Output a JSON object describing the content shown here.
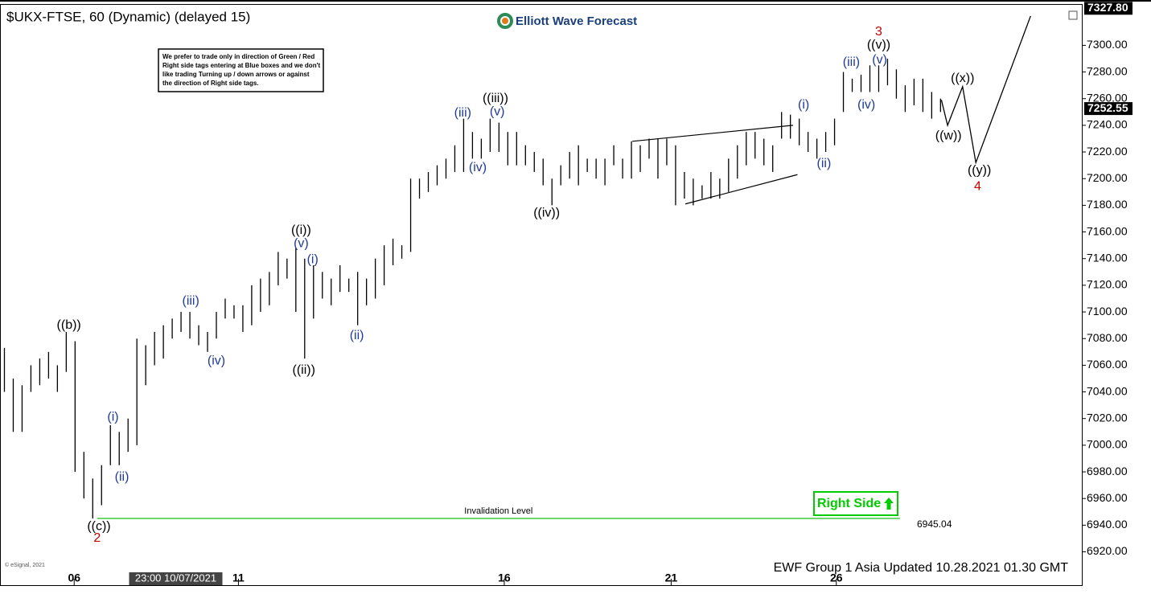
{
  "chart_data": {
    "type": "hlbar",
    "title": "$UKX-FTSE, 60 (Dynamic) (delayed 15)",
    "logo": "Elliott Wave Forecast",
    "note_lines": [
      "We prefer to trade only in direction of Green / Red",
      "Right side tags entering at Blue boxes and we don't",
      "like trading Turning up / down arrows or against",
      "the direction of Right side tags."
    ],
    "right_side_tag": "Right Side",
    "footer": "EWF Group 1 Asia  Updated 10.28.2021 01.30 GMT",
    "copyright": "© eSignal, 2021",
    "color": "#000000",
    "xlim": [
      -0.5,
      122
    ],
    "ylim": [
      6895,
      7331
    ],
    "xticks": [
      {
        "value": 7.9,
        "label": "06"
      },
      {
        "value": 19.4,
        "label": "23:00 10/07/2021"
      },
      {
        "value": 26.5,
        "label": "11"
      },
      {
        "value": 56.6,
        "label": "16"
      },
      {
        "value": 75.5,
        "label": "21"
      },
      {
        "value": 94.2,
        "label": "26"
      }
    ],
    "yticks": [
      {
        "value": 6920,
        "label": "6920.00"
      },
      {
        "value": 6940,
        "label": "6940.00"
      },
      {
        "value": 6960,
        "label": "6960.00"
      },
      {
        "value": 6980,
        "label": "6980.00"
      },
      {
        "value": 7000,
        "label": "7000.00"
      },
      {
        "value": 7020,
        "label": "7020.00"
      },
      {
        "value": 7040,
        "label": "7040.00"
      },
      {
        "value": 7060,
        "label": "7060.00"
      },
      {
        "value": 7080,
        "label": "7080.00"
      },
      {
        "value": 7100,
        "label": "7100.00"
      },
      {
        "value": 7120,
        "label": "7120.00"
      },
      {
        "value": 7140,
        "label": "7140.00"
      },
      {
        "value": 7160,
        "label": "7160.00"
      },
      {
        "value": 7180,
        "label": "7180.00"
      },
      {
        "value": 7200,
        "label": "7200.00"
      },
      {
        "value": 7220,
        "label": "7220.00"
      },
      {
        "value": 7240,
        "label": "7240.00"
      },
      {
        "value": 7260,
        "label": "7260.00"
      },
      {
        "value": 7280,
        "label": "7280.00"
      },
      {
        "value": 7300,
        "label": "7300.00"
      }
    ],
    "price_tags": [
      {
        "value": 7327.8,
        "label": "7327.80"
      },
      {
        "value": 7252.55,
        "label": "7252.55"
      }
    ],
    "bars": {
      "low": [
        7040,
        7010,
        7010,
        7040,
        7045,
        7050,
        7040,
        7055,
        6980,
        6960,
        6945,
        6955,
        6985,
        6985,
        6995,
        7000,
        7045,
        7060,
        7065,
        7080,
        7085,
        7080,
        7075,
        7070,
        7080,
        7095,
        7095,
        7085,
        7090,
        7100,
        7105,
        7120,
        7125,
        7100,
        7065,
        7095,
        7110,
        7105,
        7115,
        7115,
        7090,
        7105,
        7110,
        7120,
        7135,
        7140,
        7145,
        7185,
        7190,
        7195,
        7200,
        7205,
        7205,
        7215,
        7215,
        7220,
        7220,
        7210,
        7210,
        7210,
        7205,
        7195,
        7180,
        7195,
        7200,
        7195,
        7205,
        7200,
        7195,
        7210,
        7200,
        7200,
        7205,
        7215,
        7200,
        7210,
        7180,
        7185,
        7180,
        7185,
        7185,
        7185,
        7190,
        7200,
        7210,
        7215,
        7210,
        7205,
        7230,
        7230,
        7225,
        7220,
        7215,
        7220,
        7225,
        7250,
        7265,
        7265,
        7265,
        7265,
        7270,
        7260,
        7250,
        7255,
        7250,
        7245,
        7250
      ],
      "high": [
        7073,
        7050,
        7045,
        7060,
        7065,
        7070,
        7060,
        7085,
        7078,
        6995,
        6975,
        6985,
        7015,
        7010,
        7020,
        7080,
        7075,
        7085,
        7090,
        7095,
        7100,
        7100,
        7090,
        7085,
        7100,
        7110,
        7105,
        7105,
        7120,
        7125,
        7130,
        7145,
        7140,
        7148,
        7140,
        7135,
        7130,
        7125,
        7135,
        7125,
        7130,
        7125,
        7140,
        7150,
        7155,
        7150,
        7200,
        7200,
        7205,
        7210,
        7215,
        7225,
        7245,
        7235,
        7230,
        7245,
        7242,
        7235,
        7235,
        7225,
        7220,
        7215,
        7200,
        7210,
        7220,
        7225,
        7215,
        7215,
        7215,
        7225,
        7215,
        7228,
        7225,
        7230,
        7230,
        7230,
        7225,
        7205,
        7200,
        7195,
        7205,
        7200,
        7215,
        7225,
        7235,
        7235,
        7230,
        7225,
        7250,
        7248,
        7245,
        7235,
        7230,
        7235,
        7245,
        7280,
        7275,
        7278,
        7285,
        7285,
        7290,
        7282,
        7270,
        7275,
        7275,
        7265,
        7260
      ]
    },
    "wave_labels": [
      {
        "text": "((b))",
        "x": 7.3,
        "y": 7090,
        "color": "#000000"
      },
      {
        "text": "((c))",
        "x": 10.7,
        "y": 6939,
        "color": "#000000"
      },
      {
        "text": "2",
        "x": 10.5,
        "y": 6930,
        "color": "#c00000"
      },
      {
        "text": "(i)",
        "x": 12.3,
        "y": 7021,
        "color": "#1f3a9a"
      },
      {
        "text": "(ii)",
        "x": 13.3,
        "y": 6976,
        "color": "#1f3a9a"
      },
      {
        "text": "(iii)",
        "x": 21.1,
        "y": 7108,
        "color": "#1f3a9a"
      },
      {
        "text": "(iv)",
        "x": 24,
        "y": 7063,
        "color": "#1f3a9a"
      },
      {
        "text": "((i))",
        "x": 33.6,
        "y": 7161,
        "color": "#000000"
      },
      {
        "text": "(v)",
        "x": 33.6,
        "y": 7151,
        "color": "#1f3a9a"
      },
      {
        "text": "(i)",
        "x": 34.9,
        "y": 7139,
        "color": "#1f3a9a"
      },
      {
        "text": "((ii))",
        "x": 33.9,
        "y": 7056,
        "color": "#000000"
      },
      {
        "text": "(ii)",
        "x": 39.9,
        "y": 7082,
        "color": "#1f3a9a"
      },
      {
        "text": "(iii)",
        "x": 51.9,
        "y": 7249,
        "color": "#1f3a9a"
      },
      {
        "text": "(iv)",
        "x": 53.6,
        "y": 7208,
        "color": "#1f3a9a"
      },
      {
        "text": "(v)",
        "x": 55.8,
        "y": 7250,
        "color": "#1f3a9a"
      },
      {
        "text": "((iii))",
        "x": 55.6,
        "y": 7260,
        "color": "#000000"
      },
      {
        "text": "((iv))",
        "x": 61.4,
        "y": 7174,
        "color": "#000000"
      },
      {
        "text": "(i)",
        "x": 90.5,
        "y": 7255,
        "color": "#1f3a9a"
      },
      {
        "text": "(ii)",
        "x": 92.8,
        "y": 7211,
        "color": "#1f3a9a"
      },
      {
        "text": "(iii)",
        "x": 95.9,
        "y": 7287,
        "color": "#1f3a9a"
      },
      {
        "text": "(iv)",
        "x": 97.6,
        "y": 7255,
        "color": "#1f3a9a"
      },
      {
        "text": "(v)",
        "x": 99.1,
        "y": 7289,
        "color": "#1f3a9a"
      },
      {
        "text": "((v))",
        "x": 99,
        "y": 7300,
        "color": "#000000"
      },
      {
        "text": "3",
        "x": 99,
        "y": 7310,
        "color": "#c00000"
      },
      {
        "text": "((w))",
        "x": 106.9,
        "y": 7232,
        "color": "#000000"
      },
      {
        "text": "((x))",
        "x": 108.5,
        "y": 7275,
        "color": "#000000"
      },
      {
        "text": "((y))",
        "x": 110.4,
        "y": 7206,
        "color": "#000000"
      },
      {
        "text": "4",
        "x": 110.2,
        "y": 7194,
        "color": "#c00000"
      }
    ],
    "projection": {
      "x": [
        106.1,
        106.8,
        108.5,
        110,
        116.2
      ],
      "y": [
        7259,
        7240,
        7269,
        7212,
        7322
      ]
    },
    "wedge": [
      {
        "x": [
          71.1,
          89.3
        ],
        "y": [
          7228,
          7240
        ]
      },
      {
        "x": [
          77.1,
          89.8
        ],
        "y": [
          7181,
          7203
        ]
      }
    ],
    "invalidation": {
      "value": 6945.04,
      "text": "Invalidation Level",
      "x": [
        10.5,
        101.4
      ],
      "color": "#3ccc3c"
    }
  }
}
